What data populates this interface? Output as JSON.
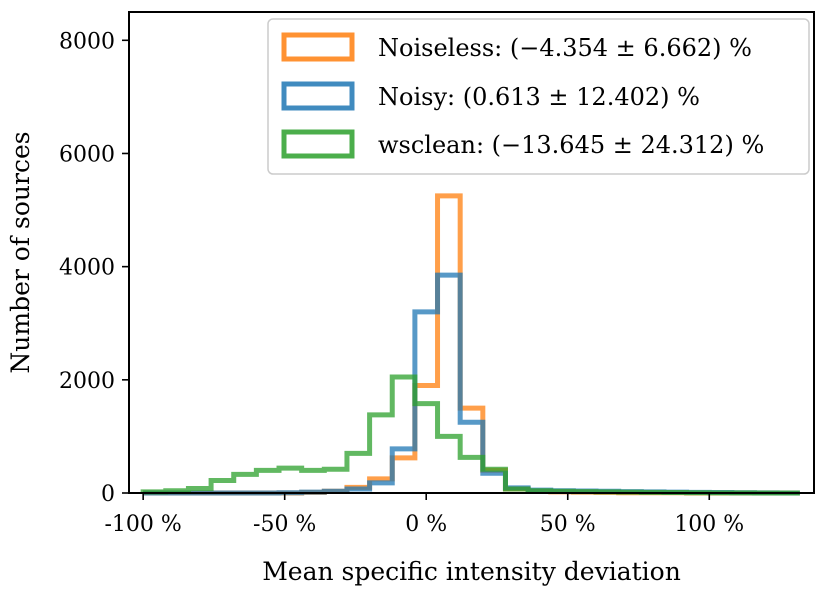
{
  "chart_data": {
    "type": "histogram",
    "xlabel": "Mean specific intensity deviation",
    "ylabel": "Number of sources",
    "xlim": [
      -105,
      137
    ],
    "ylim": [
      0,
      8500
    ],
    "grid": false,
    "legend_position": "top-right",
    "x_ticks": [
      {
        "value": -100,
        "label": "-100 %"
      },
      {
        "value": -50,
        "label": "-50 %"
      },
      {
        "value": 0,
        "label": "0 %"
      },
      {
        "value": 50,
        "label": "50 %"
      },
      {
        "value": 100,
        "label": "100 %"
      }
    ],
    "y_ticks": [
      {
        "value": 0,
        "label": "0"
      },
      {
        "value": 2000,
        "label": "2000"
      },
      {
        "value": 4000,
        "label": "4000"
      },
      {
        "value": 6000,
        "label": "6000"
      },
      {
        "value": 8000,
        "label": "8000"
      }
    ],
    "bin_edges": [
      -100,
      -92,
      -84,
      -76,
      -68,
      -60,
      -52,
      -44,
      -36,
      -28,
      -20,
      -12,
      -4,
      4,
      12,
      20,
      28,
      36,
      44,
      52,
      60,
      68,
      76,
      84,
      92,
      100,
      108,
      116,
      124,
      132
    ],
    "series": [
      {
        "name": "Noiseless: (−4.354 ± 6.662) %",
        "color": "#ff7f0e",
        "counts": [
          0,
          0,
          0,
          0,
          0,
          0,
          0,
          10,
          30,
          100,
          250,
          620,
          1900,
          5250,
          1500,
          400,
          70,
          30,
          20,
          15,
          10,
          5,
          5,
          5,
          0,
          0,
          0,
          0,
          0
        ]
      },
      {
        "name": "Noisy: (0.613 ± 12.402) %",
        "color": "#1f77b4",
        "counts": [
          0,
          0,
          0,
          0,
          0,
          0,
          5,
          15,
          30,
          70,
          180,
          780,
          3200,
          3850,
          1250,
          350,
          90,
          50,
          40,
          35,
          30,
          25,
          20,
          15,
          10,
          8,
          5,
          3,
          0
        ]
      },
      {
        "name": "wsclean: (−13.645 ± 24.312) %",
        "color": "#2ca02c",
        "counts": [
          20,
          40,
          80,
          220,
          330,
          400,
          440,
          400,
          420,
          700,
          1380,
          2050,
          1580,
          1000,
          630,
          420,
          70,
          40,
          30,
          25,
          20,
          15,
          10,
          8,
          5,
          3,
          2,
          1,
          0
        ]
      }
    ]
  }
}
